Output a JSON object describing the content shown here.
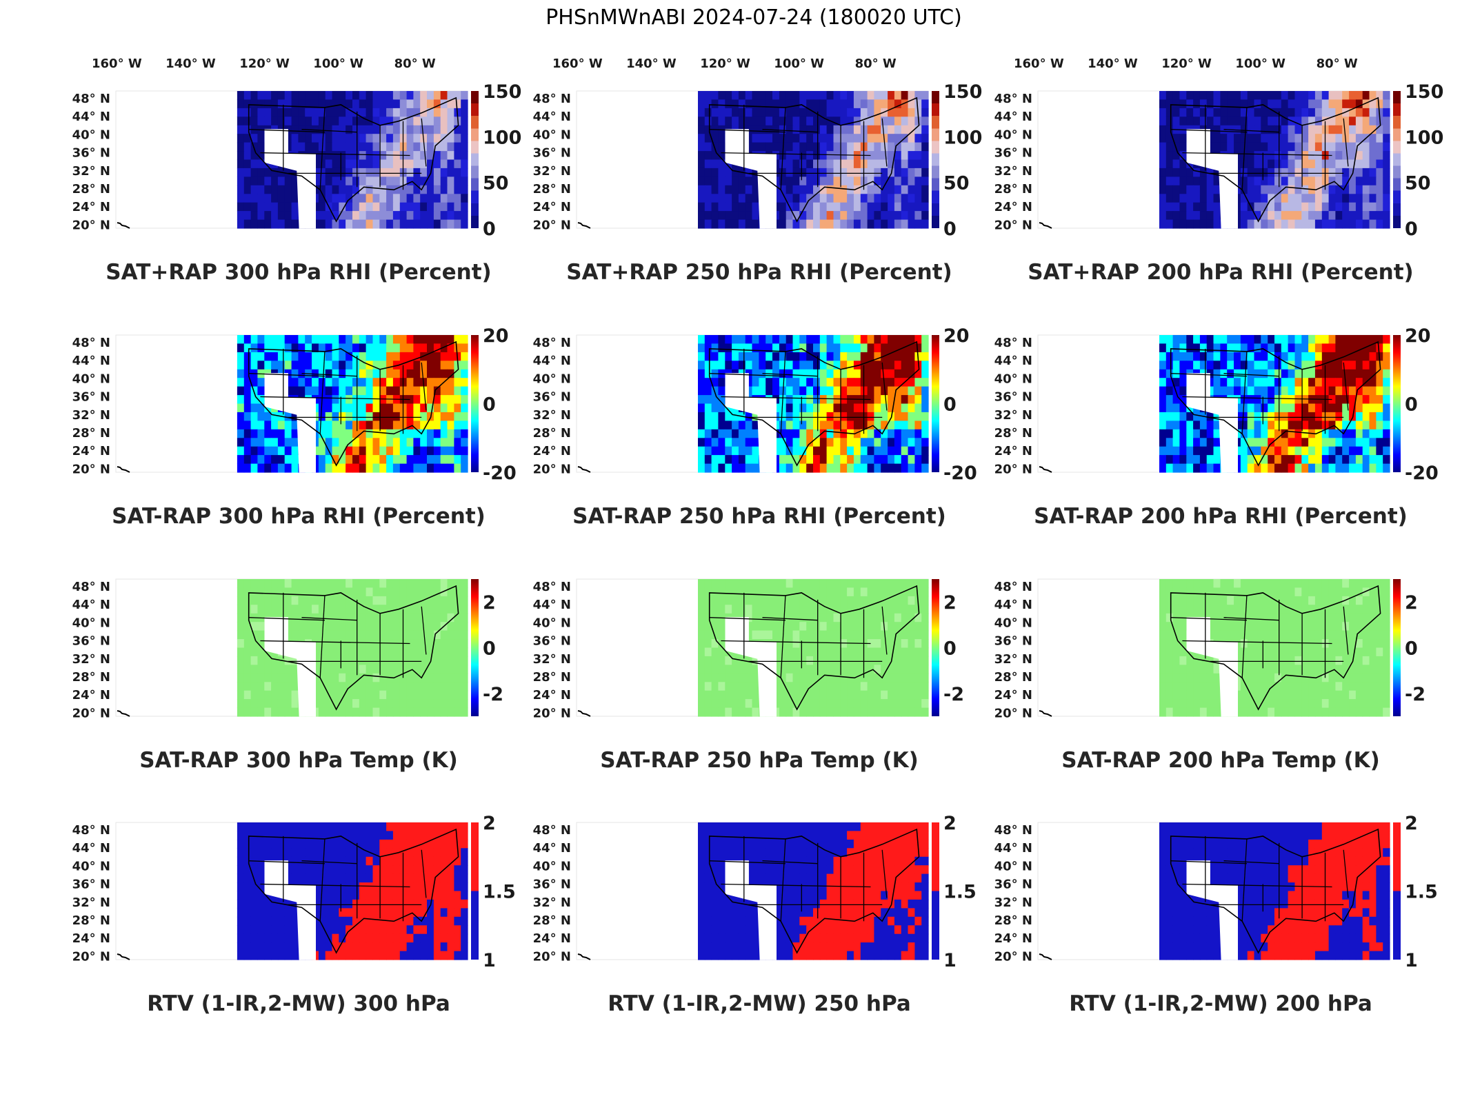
{
  "figure": {
    "title": "PHSnMWnABI 2024-07-24 (180020 UTC)"
  },
  "colors": {
    "map_blue": "#1414c8",
    "map_red": "#ff1a1a",
    "temp_green": "#88ee77",
    "background": "#ffffff"
  },
  "chart_data": [
    {
      "type": "heatmap",
      "title": "SAT+RAP 300 hPa RHI (Percent)",
      "colormap": "rhi_stepped",
      "xticks": [
        "160° W",
        "140° W",
        "120° W",
        "100° W",
        "80° W"
      ],
      "yticks": [
        "48° N",
        "44° N",
        "40° N",
        "36° N",
        "32° N",
        "28° N",
        "24° N",
        "20° N"
      ],
      "clim": [
        0,
        150
      ],
      "colorbar_ticks": [
        "150",
        "100",
        "50",
        "0"
      ],
      "grid": false
    },
    {
      "type": "heatmap",
      "title": "SAT+RAP 250 hPa RHI (Percent)",
      "colormap": "rhi_stepped",
      "xticks": [
        "160° W",
        "140° W",
        "120° W",
        "100° W",
        "80° W"
      ],
      "yticks": [
        "48° N",
        "44° N",
        "40° N",
        "36° N",
        "32° N",
        "28° N",
        "24° N",
        "20° N"
      ],
      "clim": [
        0,
        150
      ],
      "colorbar_ticks": [
        "150",
        "100",
        "50",
        "0"
      ],
      "grid": false
    },
    {
      "type": "heatmap",
      "title": "SAT+RAP 200 hPa RHI (Percent)",
      "colormap": "rhi_stepped",
      "xticks": [
        "160° W",
        "140° W",
        "120° W",
        "100° W",
        "80° W"
      ],
      "yticks": [
        "48° N",
        "44° N",
        "40° N",
        "36° N",
        "32° N",
        "28° N",
        "24° N",
        "20° N"
      ],
      "clim": [
        0,
        150
      ],
      "colorbar_ticks": [
        "150",
        "100",
        "50",
        "0"
      ],
      "grid": false
    },
    {
      "type": "heatmap",
      "title": "SAT-RAP 300 hPa RHI (Percent)",
      "colormap": "jet",
      "yticks": [
        "48° N",
        "44° N",
        "40° N",
        "36° N",
        "32° N",
        "28° N",
        "24° N",
        "20° N"
      ],
      "clim": [
        -20,
        20
      ],
      "colorbar_ticks": [
        "20",
        "0",
        "-20"
      ],
      "grid": false
    },
    {
      "type": "heatmap",
      "title": "SAT-RAP 250 hPa RHI (Percent)",
      "colormap": "jet",
      "yticks": [
        "48° N",
        "44° N",
        "40° N",
        "36° N",
        "32° N",
        "28° N",
        "24° N",
        "20° N"
      ],
      "clim": [
        -20,
        20
      ],
      "colorbar_ticks": [
        "20",
        "0",
        "-20"
      ],
      "grid": false
    },
    {
      "type": "heatmap",
      "title": "SAT-RAP 200 hPa RHI (Percent)",
      "colormap": "jet",
      "yticks": [
        "48° N",
        "44° N",
        "40° N",
        "36° N",
        "32° N",
        "28° N",
        "24° N",
        "20° N"
      ],
      "clim": [
        -20,
        20
      ],
      "colorbar_ticks": [
        "20",
        "0",
        "-20"
      ],
      "grid": false
    },
    {
      "type": "heatmap",
      "title": "SAT-RAP 300 hPa Temp (K)",
      "colormap": "jet",
      "yticks": [
        "48° N",
        "44° N",
        "40° N",
        "36° N",
        "32° N",
        "28° N",
        "24° N",
        "20° N"
      ],
      "clim": [
        -3,
        3
      ],
      "colorbar_ticks": [
        "2",
        "0",
        "-2"
      ],
      "grid": false
    },
    {
      "type": "heatmap",
      "title": "SAT-RAP 250 hPa Temp (K)",
      "colormap": "jet",
      "yticks": [
        "48° N",
        "44° N",
        "40° N",
        "36° N",
        "32° N",
        "28° N",
        "24° N",
        "20° N"
      ],
      "clim": [
        -3,
        3
      ],
      "colorbar_ticks": [
        "2",
        "0",
        "-2"
      ],
      "grid": false
    },
    {
      "type": "heatmap",
      "title": "SAT-RAP 200 hPa Temp (K)",
      "colormap": "jet",
      "yticks": [
        "48° N",
        "44° N",
        "40° N",
        "36° N",
        "32° N",
        "28° N",
        "24° N",
        "20° N"
      ],
      "clim": [
        -3,
        3
      ],
      "colorbar_ticks": [
        "2",
        "0",
        "-2"
      ],
      "grid": false
    },
    {
      "type": "heatmap",
      "title": "RTV (1-IR,2-MW) 300 hPa",
      "colormap": "blue_red",
      "yticks": [
        "48° N",
        "44° N",
        "40° N",
        "36° N",
        "32° N",
        "28° N",
        "24° N",
        "20° N"
      ],
      "clim": [
        1,
        2
      ],
      "colorbar_ticks": [
        "2",
        "1.5",
        "1"
      ],
      "grid": false
    },
    {
      "type": "heatmap",
      "title": "RTV (1-IR,2-MW) 250 hPa",
      "colormap": "blue_red",
      "yticks": [
        "48° N",
        "44° N",
        "40° N",
        "36° N",
        "32° N",
        "28° N",
        "24° N",
        "20° N"
      ],
      "clim": [
        1,
        2
      ],
      "colorbar_ticks": [
        "2",
        "1.5",
        "1"
      ],
      "grid": false
    },
    {
      "type": "heatmap",
      "title": "RTV (1-IR,2-MW) 200 hPa",
      "colormap": "blue_red",
      "yticks": [
        "48° N",
        "44° N",
        "40° N",
        "36° N",
        "32° N",
        "28° N",
        "24° N",
        "20° N"
      ],
      "clim": [
        1,
        2
      ],
      "colorbar_ticks": [
        "2",
        "1.5",
        "1"
      ],
      "grid": false
    }
  ]
}
